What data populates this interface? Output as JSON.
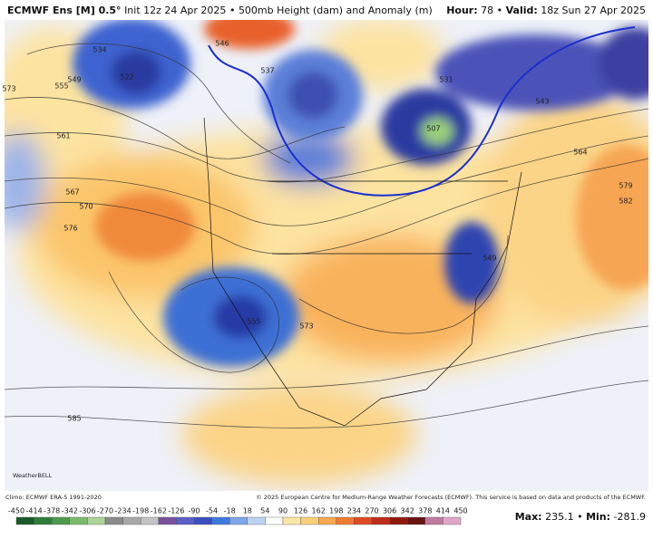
{
  "header": {
    "model": "ECMWF Ens [M] 0.5°",
    "init": "Init 12z 24 Apr 2025",
    "separator": "•",
    "field": "500mb Height (dam) and Anomaly (m)",
    "hour_label": "Hour:",
    "hour": 78,
    "valid_label": "Valid:",
    "valid": "18z Sun 27 Apr 2025"
  },
  "map": {
    "watermark": "WeatherBELL",
    "contour_labels": [
      534,
      522,
      549,
      555,
      561,
      567,
      570,
      576,
      573,
      537,
      546,
      531,
      507,
      543,
      564,
      579,
      582,
      549,
      555,
      573,
      585
    ]
  },
  "footer": {
    "climo": "Climo: ECMWF ERA-5 1991-2020",
    "copyright": "© 2025 European Centre for Medium-Range Weather Forecasts (ECMWF). This service is based on data and products of the ECMWF."
  },
  "colorbar": {
    "ticks": [
      -450,
      -414,
      -378,
      -342,
      -306,
      -270,
      -234,
      -198,
      -162,
      -126,
      -90,
      -54,
      -18,
      18,
      54,
      90,
      126,
      162,
      198,
      234,
      270,
      306,
      342,
      378,
      414,
      450
    ],
    "colors": [
      "#1a5a2a",
      "#2f7d3a",
      "#4e9a4e",
      "#7cba6e",
      "#aed39a",
      "#8a8a8a",
      "#a8a8a8",
      "#c4c4c4",
      "#7a4f9e",
      "#5b5fc7",
      "#3b4fc0",
      "#3f7ae0",
      "#7ea7ea",
      "#bcd2f3",
      "#ffffff",
      "#fce8a6",
      "#fbd07a",
      "#f8a84e",
      "#f07a34",
      "#e04a22",
      "#c02a1a",
      "#8f1a10",
      "#6a1212",
      "#c07aa0",
      "#e0a8c8"
    ]
  },
  "stats": {
    "max_label": "Max:",
    "max": 235.1,
    "min_label": "Min:",
    "min": -281.9
  }
}
